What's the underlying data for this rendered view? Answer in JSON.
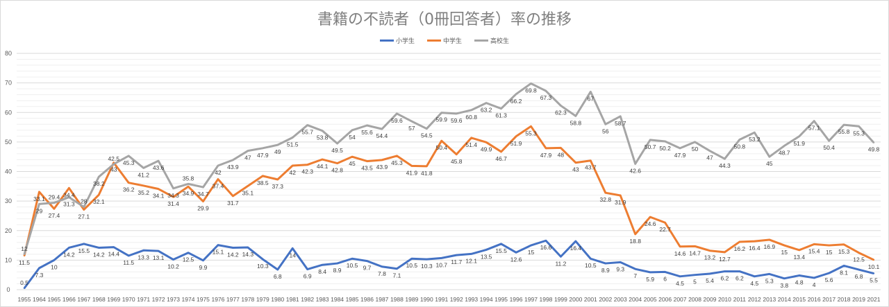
{
  "chart_data": {
    "type": "line",
    "title": "書籍の不読者（0冊回答者）率の推移",
    "xlabel": "",
    "ylabel": "",
    "ylim": [
      0,
      80
    ],
    "yticks": [
      0,
      10,
      20,
      30,
      40,
      50,
      60,
      70,
      80
    ],
    "grid": true,
    "legend_position": "top",
    "categories": [
      "1955",
      "1964",
      "1965",
      "1966",
      "1967",
      "1968",
      "1969",
      "1970",
      "1971",
      "1972",
      "1973",
      "1974",
      "1975",
      "1976",
      "1977",
      "1978",
      "1979",
      "1980",
      "1981",
      "1982",
      "1983",
      "1984",
      "1985",
      "1986",
      "1987",
      "1988",
      "1989",
      "1990",
      "1991",
      "1992",
      "1993",
      "1994",
      "1995",
      "1996",
      "1997",
      "1998",
      "1999",
      "2000",
      "2001",
      "2002",
      "2003",
      "2004",
      "2005",
      "2006",
      "2007",
      "2008",
      "2009",
      "2010",
      "2011",
      "2012",
      "2013",
      "2014",
      "2015",
      "2016",
      "2017",
      "2018",
      "2019",
      "2021"
    ],
    "series": [
      {
        "name": "小学生",
        "color": "#4472c4",
        "values": [
          0.5,
          7.3,
          10,
          14.2,
          15.5,
          14.2,
          14.4,
          11.5,
          13.3,
          13.1,
          10.2,
          12.5,
          9.9,
          15.1,
          14.2,
          14.3,
          10.3,
          6.8,
          14,
          6.9,
          8.4,
          8.9,
          10.5,
          9.7,
          7.8,
          7.1,
          10.5,
          10.3,
          10.7,
          11.7,
          12.1,
          13.5,
          15.5,
          12.6,
          15,
          16.6,
          11.2,
          16.4,
          10.5,
          8.9,
          9.3,
          7,
          5.9,
          6,
          4.5,
          5,
          5.4,
          6.2,
          6.2,
          4.5,
          5.3,
          3.8,
          4.8,
          4,
          5.6,
          8.1,
          6.8,
          5.5
        ]
      },
      {
        "name": "中学生",
        "color": "#ed7d31",
        "values": [
          11.5,
          33.1,
          27.4,
          34.4,
          27.1,
          32.1,
          43,
          36.2,
          35.2,
          34.1,
          31.4,
          34.9,
          29.9,
          37.4,
          31.7,
          35.1,
          38.5,
          37.3,
          42,
          42.3,
          44.1,
          42.8,
          45,
          43.5,
          43.9,
          45.3,
          41.9,
          41.8,
          50.4,
          45.8,
          51.4,
          49.9,
          46.7,
          51.9,
          55.3,
          47.9,
          48,
          43,
          43.7,
          32.8,
          31.9,
          18.8,
          24.6,
          22.7,
          14.6,
          14.7,
          13.2,
          12.7,
          16.2,
          16.4,
          16.9,
          15,
          13.4,
          15.4,
          15,
          15.3,
          12.5,
          10.1
        ]
      },
      {
        "name": "高校生",
        "color": "#a5a5a5",
        "values": [
          12,
          29,
          29.4,
          31.3,
          28,
          38.2,
          42.5,
          45.3,
          41.2,
          43.6,
          34.3,
          35.8,
          34.7,
          42,
          43.9,
          47,
          47.9,
          49,
          51.5,
          55.7,
          53.8,
          49.5,
          54,
          55.6,
          54.4,
          59.6,
          57,
          54.5,
          59.9,
          59.6,
          60.8,
          63.2,
          61.3,
          66.2,
          69.8,
          67.3,
          62.3,
          58.8,
          67,
          56,
          58.7,
          42.6,
          50.7,
          50.2,
          47.9,
          50,
          47,
          44.3,
          50.8,
          53.2,
          45,
          48.7,
          51.9,
          57.1,
          50.4,
          55.8,
          55.3,
          49.8
        ]
      }
    ]
  }
}
